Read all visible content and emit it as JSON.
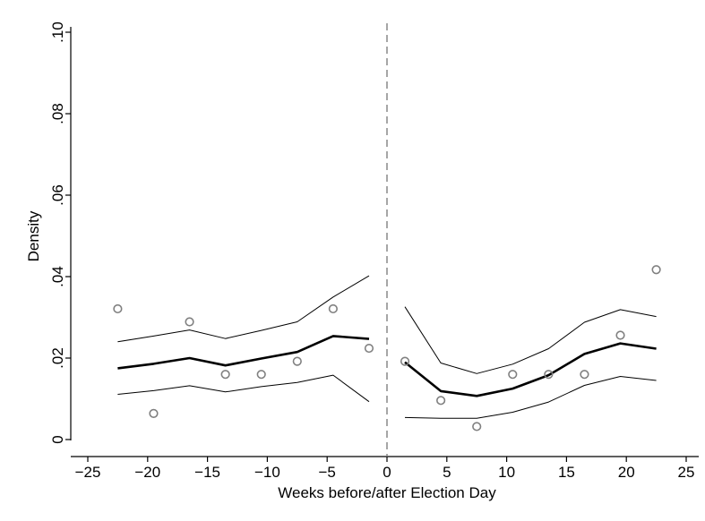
{
  "chart_data": {
    "type": "scatter",
    "title": "",
    "xlabel": "Weeks before/after Election Day",
    "ylabel": "Density",
    "xlim": [
      -27,
      27
    ],
    "ylim": [
      0,
      0.1
    ],
    "x_ticks": [
      -25,
      -20,
      -15,
      -10,
      -5,
      0,
      5,
      10,
      15,
      20,
      25
    ],
    "x_tick_labels": [
      "−25",
      "−20",
      "−15",
      "−10",
      "−5",
      "0",
      "5",
      "10",
      "15",
      "20",
      "25"
    ],
    "y_ticks": [
      0,
      0.02,
      0.04,
      0.06,
      0.08,
      0.1
    ],
    "y_tick_labels": [
      "0",
      ".02",
      ".04",
      ".06",
      ".08",
      ".10"
    ],
    "grid": false,
    "legend": "none",
    "cutoff_x": 0,
    "colors": {
      "points": "#808080",
      "fit": "#000000",
      "ci": "#000000",
      "cutoff": "#808080",
      "axes": "#000000"
    },
    "points": {
      "x": [
        -22.5,
        -19.5,
        -16.5,
        -13.5,
        -10.5,
        -7.5,
        -4.5,
        -1.5,
        1.5,
        4.5,
        7.5,
        10.5,
        13.5,
        16.5,
        19.5,
        22.5
      ],
      "y": [
        0.0321,
        0.0064,
        0.0289,
        0.016,
        0.016,
        0.0192,
        0.0321,
        0.0224,
        0.0192,
        0.0096,
        0.0032,
        0.016,
        0.016,
        0.016,
        0.0256,
        0.0417
      ]
    },
    "left_segment": {
      "x": [
        -22.5,
        -19.5,
        -16.5,
        -13.5,
        -10.5,
        -7.5,
        -4.5,
        -1.5
      ],
      "fit": [
        0.0175,
        0.0186,
        0.02,
        0.0182,
        0.0199,
        0.0215,
        0.0254,
        0.0247
      ],
      "upper": [
        0.024,
        0.0254,
        0.0269,
        0.0248,
        0.0268,
        0.0289,
        0.035,
        0.0402
      ],
      "lower": [
        0.0111,
        0.012,
        0.0132,
        0.0117,
        0.013,
        0.014,
        0.0158,
        0.0093
      ]
    },
    "right_segment": {
      "x": [
        1.5,
        4.5,
        7.5,
        10.5,
        13.5,
        16.5,
        19.5,
        22.5
      ],
      "fit": [
        0.019,
        0.0119,
        0.0107,
        0.0125,
        0.0158,
        0.021,
        0.0236,
        0.0223
      ],
      "upper": [
        0.0326,
        0.0188,
        0.0162,
        0.0185,
        0.0223,
        0.0288,
        0.0319,
        0.0302
      ],
      "lower": [
        0.0054,
        0.0052,
        0.0052,
        0.0067,
        0.0092,
        0.0133,
        0.0155,
        0.0145
      ]
    }
  }
}
